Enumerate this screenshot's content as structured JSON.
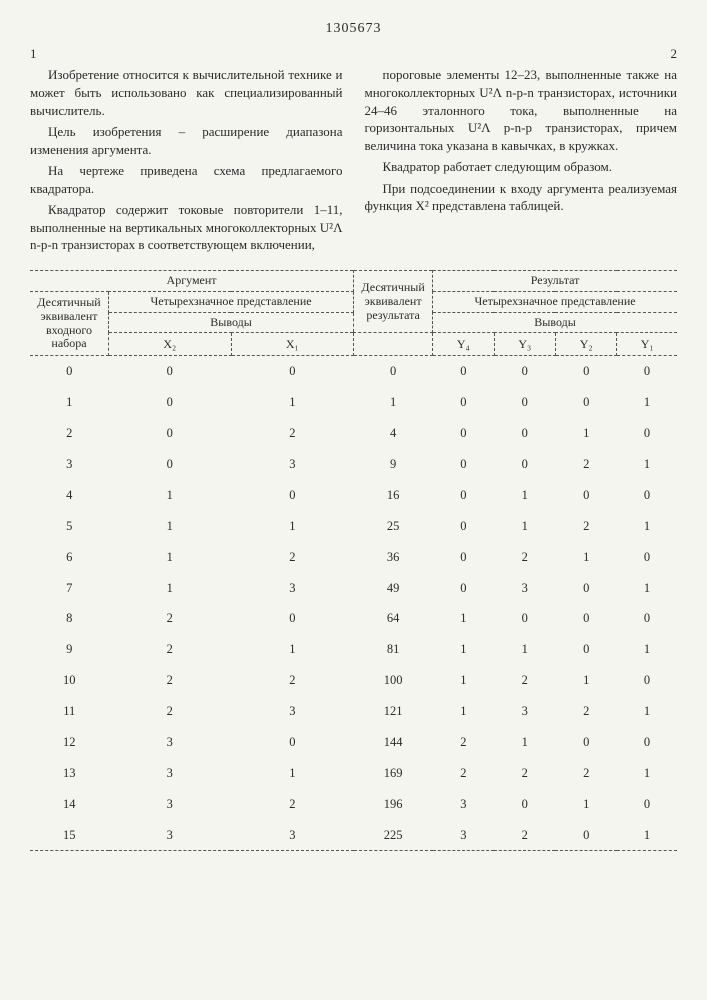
{
  "doc_id": "1305673",
  "page_left": "1",
  "page_right": "2",
  "left_col": {
    "p1": "Изобретение относится к вычислительной технике и может быть использовано как специализированный вычислитель.",
    "p2": "Цель изобретения – расширение диапазона изменения аргумента.",
    "p3": "На чертеже приведена схема предлагаемого квадратора.",
    "p4": "Квадратор содержит токовые повторители 1–11, выполненные на вертикальных многоколлекторных U²Λ n-p-n транзисторах в соответствующем включении,"
  },
  "right_col": {
    "p1": "пороговые элементы 12–23, выполненные также на многоколлекторных U²Λ n-p-n транзисторах, источники 24–46 эталонного тока, выполненные на горизонтальных U²Λ p-n-p транзисторах, причем величина тока указана в кавычках, в кружках.",
    "p2": "Квадратор работает следующим образом.",
    "p3": "При подсоединении к входу аргумента реализуемая функция X² представлена таблицей."
  },
  "table": {
    "header": {
      "argument": "Аргумент",
      "result": "Результат",
      "dec_input": "Десятичный эквивалент входного набора",
      "four_rep": "Четырехзначное представление",
      "outputs": "Выводы",
      "dec_result": "Десятичный эквивалент результата",
      "x2": "X₂",
      "x1": "X₁",
      "y4": "Y₄",
      "y3": "Y₃",
      "y2": "Y₂",
      "y1": "Y₁"
    },
    "rows": [
      [
        "0",
        "0",
        "0",
        "0",
        "0",
        "0",
        "0",
        "0"
      ],
      [
        "1",
        "0",
        "1",
        "1",
        "0",
        "0",
        "0",
        "1"
      ],
      [
        "2",
        "0",
        "2",
        "4",
        "0",
        "0",
        "1",
        "0"
      ],
      [
        "3",
        "0",
        "3",
        "9",
        "0",
        "0",
        "2",
        "1"
      ],
      [
        "4",
        "1",
        "0",
        "16",
        "0",
        "1",
        "0",
        "0"
      ],
      [
        "5",
        "1",
        "1",
        "25",
        "0",
        "1",
        "2",
        "1"
      ],
      [
        "6",
        "1",
        "2",
        "36",
        "0",
        "2",
        "1",
        "0"
      ],
      [
        "7",
        "1",
        "3",
        "49",
        "0",
        "3",
        "0",
        "1"
      ],
      [
        "8",
        "2",
        "0",
        "64",
        "1",
        "0",
        "0",
        "0"
      ],
      [
        "9",
        "2",
        "1",
        "81",
        "1",
        "1",
        "0",
        "1"
      ],
      [
        "10",
        "2",
        "2",
        "100",
        "1",
        "2",
        "1",
        "0"
      ],
      [
        "11",
        "2",
        "3",
        "121",
        "1",
        "3",
        "2",
        "1"
      ],
      [
        "12",
        "3",
        "0",
        "144",
        "2",
        "1",
        "0",
        "0"
      ],
      [
        "13",
        "3",
        "1",
        "169",
        "2",
        "2",
        "2",
        "1"
      ],
      [
        "14",
        "3",
        "2",
        "196",
        "3",
        "0",
        "1",
        "0"
      ],
      [
        "15",
        "3",
        "3",
        "225",
        "3",
        "2",
        "0",
        "1"
      ]
    ]
  }
}
